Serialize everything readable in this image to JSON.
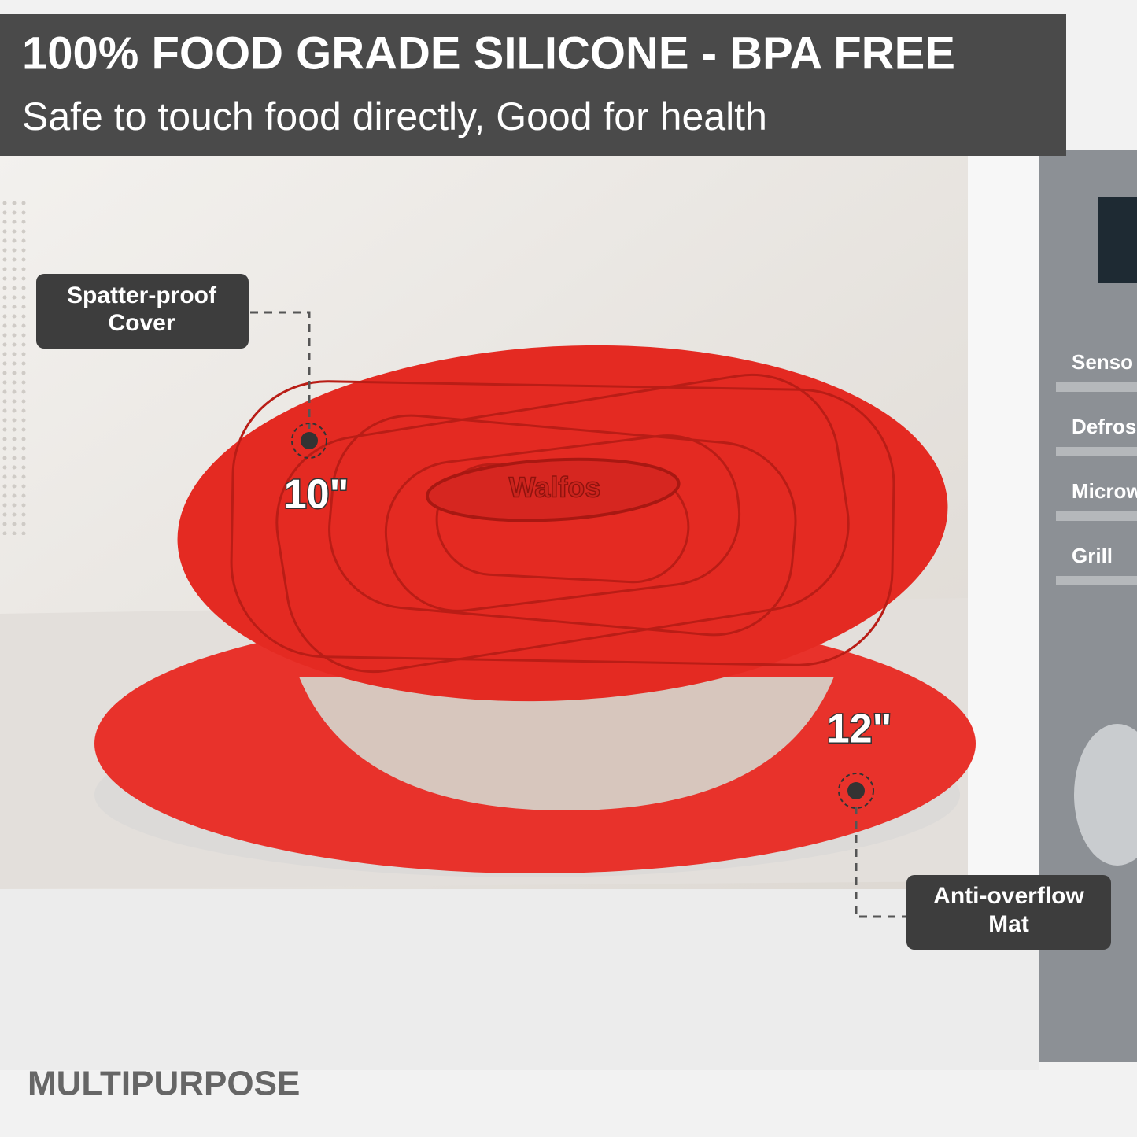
{
  "header": {
    "title": "100% FOOD GRADE SILICONE - BPA FREE",
    "subtitle": "Safe to touch food directly, Good for health"
  },
  "callouts": {
    "cover": {
      "lines": [
        "Spatter-proof",
        "Cover"
      ],
      "size": "10\""
    },
    "mat": {
      "lines": [
        "Anti-overflow",
        "Mat"
      ],
      "size": "12\""
    }
  },
  "brand": "Walfos",
  "panel": {
    "buttons": [
      "Senso",
      "Defros",
      "Microwa",
      "Grill"
    ]
  },
  "footer": "MULTIPURPOSE"
}
